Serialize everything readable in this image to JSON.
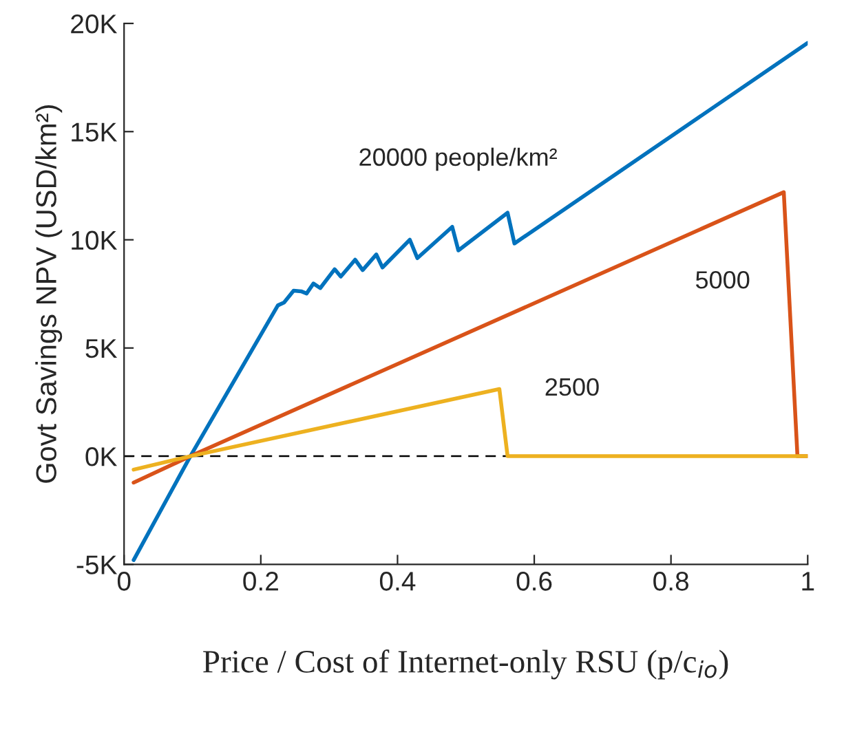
{
  "chart_data": {
    "type": "line",
    "xlabel": "Price / Cost of Internet-only RSU (p/c$_{io}$)",
    "ylabel": "Govt Savings NPV (USD/km²)",
    "series": [
      {
        "name": "20000 people/km²",
        "color": "#0072bd",
        "x": [
          0.014,
          0.097,
          0.225,
          0.234,
          0.248,
          0.259,
          0.267,
          0.277,
          0.287,
          0.308,
          0.317,
          0.338,
          0.349,
          0.369,
          0.378,
          0.418,
          0.429,
          0.48,
          0.489,
          0.561,
          0.571,
          1.0
        ],
        "values": [
          -4.8,
          0,
          6.97,
          7.1,
          7.65,
          7.62,
          7.52,
          7.98,
          7.77,
          8.64,
          8.3,
          9.08,
          8.6,
          9.32,
          8.72,
          10.0,
          9.15,
          10.6,
          9.51,
          11.25,
          9.83,
          19.1
        ]
      },
      {
        "name": "5000",
        "color": "#d95319",
        "x": [
          0.014,
          0.097,
          0.965,
          0.985,
          1.0
        ],
        "values": [
          -1.22,
          0,
          12.2,
          0,
          0
        ]
      },
      {
        "name": "2500",
        "color": "#edb120",
        "x": [
          0.014,
          0.097,
          0.549,
          0.561,
          1.0
        ],
        "values": [
          -0.62,
          0,
          3.1,
          0,
          0
        ]
      }
    ],
    "ref_lines": [
      {
        "axis": "y",
        "value": 0,
        "color": "#000000",
        "line_style": "dashed"
      }
    ],
    "xlim": [
      0,
      1
    ],
    "xticks": [
      0,
      0.2,
      0.4,
      0.6,
      0.8,
      1
    ],
    "ylim": [
      -5,
      20
    ],
    "yticks": [
      {
        "value": -5,
        "label": "-5K"
      },
      {
        "value": 0,
        "label": "0K"
      },
      {
        "value": 5,
        "label": "5K"
      },
      {
        "value": 10,
        "label": "10K"
      },
      {
        "value": 15,
        "label": "15K"
      },
      {
        "value": 20,
        "label": "20K"
      }
    ],
    "grid": false,
    "legend": false
  }
}
